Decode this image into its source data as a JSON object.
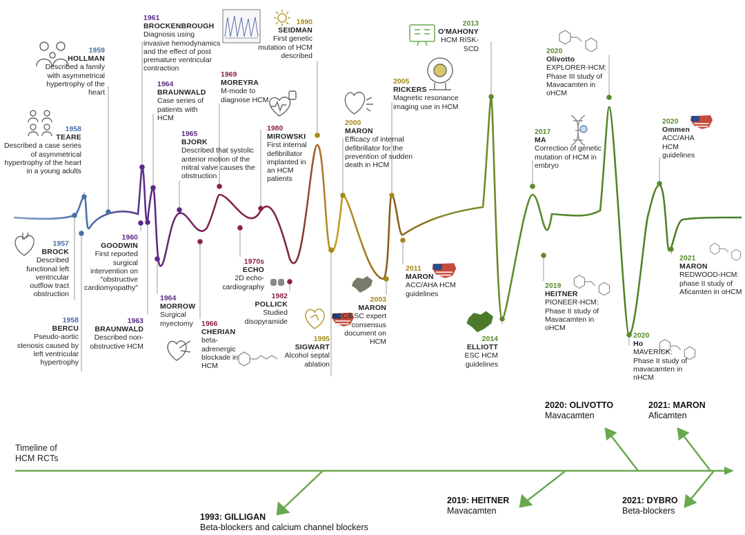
{
  "colors": {
    "blue": "#4a6fa5",
    "purple": "#5b2a86",
    "maroon": "#8b2146",
    "olive": "#a38a1a",
    "green": "#5a8a2c",
    "darkgreen": "#4a7a2a",
    "arrow": "#6aa84f",
    "icon": "#666666"
  },
  "events": [
    {
      "year": "1957",
      "name": "BROCK",
      "desc": "Described functional left ventricular outflow tract obstruction",
      "color": "blue"
    },
    {
      "year": "1958",
      "name": "BERCU",
      "desc": "Pseudo-aortic stenosis caused by left ventricular hypertrophy",
      "color": "blue"
    },
    {
      "year": "1958",
      "name": "TEARE",
      "desc": "Described a case series of asymmetrical hypertrophy of the heart in a young adults",
      "color": "blue"
    },
    {
      "year": "1959",
      "name": "HOLLMAN",
      "desc": "Described a family with asymmetrical hypertrophy of the heart",
      "color": "blue"
    },
    {
      "year": "1960",
      "name": "GOODWIN",
      "desc": "First reported surgical intervention on \"obstructive cardiomyopathy\"",
      "color": "purple"
    },
    {
      "year": "1961",
      "name": "BROCKENBROUGH",
      "desc": "Diagnosis using invasive hemodynamics and the effect of post premature ventricular contraction",
      "color": "purple"
    },
    {
      "year": "1963",
      "name": "BRAUNWALD",
      "desc": "Described non-obstructive HCM",
      "color": "purple"
    },
    {
      "year": "1964",
      "name": "BRAUNWALD",
      "desc": "Case series of patients with HCM",
      "color": "purple"
    },
    {
      "year": "1964",
      "name": "MORROW",
      "desc": "Surgical myectomy",
      "color": "purple"
    },
    {
      "year": "1965",
      "name": "BJORK",
      "desc": "Described that systolic anterior motion of the mitral valve causes the obstruction",
      "color": "purple"
    },
    {
      "year": "1966",
      "name": "CHERIAN",
      "desc": "beta-adrenergic blockade in HCM",
      "color": "maroon"
    },
    {
      "year": "1969",
      "name": "MOREYRA",
      "desc": "M-mode to diagnose HCM",
      "color": "maroon"
    },
    {
      "year": "1970s",
      "name": "ECHO",
      "desc": "2D echo-cardiography",
      "color": "maroon"
    },
    {
      "year": "1980",
      "name": "MIROWSKI",
      "desc": "First internal defibrillator implanted in an HCM patients",
      "color": "maroon"
    },
    {
      "year": "1982",
      "name": "POLLICK",
      "desc": "Studied disopyramide",
      "color": "maroon"
    },
    {
      "year": "1990",
      "name": "SEIDMAN",
      "desc": "First genetic mutation of HCM described",
      "color": "olive"
    },
    {
      "year": "1995",
      "name": "SIGWART",
      "desc": "Alcohol septal ablation",
      "color": "olive"
    },
    {
      "year": "2000",
      "name": "MARON",
      "desc": "Efficacy of internal defibrillator for the prevention of sudden death in HCM",
      "color": "olive"
    },
    {
      "year": "2003",
      "name": "MARON",
      "desc": "ACC/ESC expert consensus document on HCM",
      "color": "olive"
    },
    {
      "year": "2005",
      "name": "RICKERS",
      "desc": "Magnetic resonance imaging use in HCM",
      "color": "olive"
    },
    {
      "year": "2011",
      "name": "MARON",
      "desc": "ACC/AHA HCM guidelines",
      "color": "olive"
    },
    {
      "year": "2013",
      "name": "O'MAHONY",
      "desc": "HCM RISK-SCD",
      "color": "green"
    },
    {
      "year": "2014",
      "name": "ELLIOTT",
      "desc": "ESC HCM guidelines",
      "color": "green"
    },
    {
      "year": "2017",
      "name": "MA",
      "desc": "Correction of genetic mutation of HCM in embryo",
      "color": "green"
    },
    {
      "year": "2019",
      "name": "HEITNER",
      "desc": "PIONEER-HCM: Phase II study of Mavacamten in oHCM",
      "color": "green"
    },
    {
      "year": "2020",
      "name": "Olivotto",
      "desc": "EXPLORER-HCM: Phase III study of Mavacamten in oHCM",
      "color": "green"
    },
    {
      "year": "2020",
      "name": "Ho",
      "desc": "MAVERICK: Phase II study of mavacamten in nHCM",
      "color": "green"
    },
    {
      "year": "2020",
      "name": "Ommen",
      "desc": "ACC/AHA HCM guidelines",
      "color": "green"
    },
    {
      "year": "2021",
      "name": "MARON",
      "desc": "REDWOOD-HCM: phase II study of Aficamten in oHCM",
      "color": "green"
    }
  ],
  "timeline_label": "Timeline of HCM RCTs",
  "rcts": [
    {
      "title": "1993: GILLIGAN",
      "subtitle": "Beta-blockers and calcium channel blockers"
    },
    {
      "title": "2019: HEITNER",
      "subtitle": "Mavacamten"
    },
    {
      "title": "2020: OLIVOTTO",
      "subtitle": "Mavacamten"
    },
    {
      "title": "2021: MARON",
      "subtitle": "Aficamten"
    },
    {
      "title": "2021: DYBRO",
      "subtitle": "Beta-blockers"
    }
  ]
}
